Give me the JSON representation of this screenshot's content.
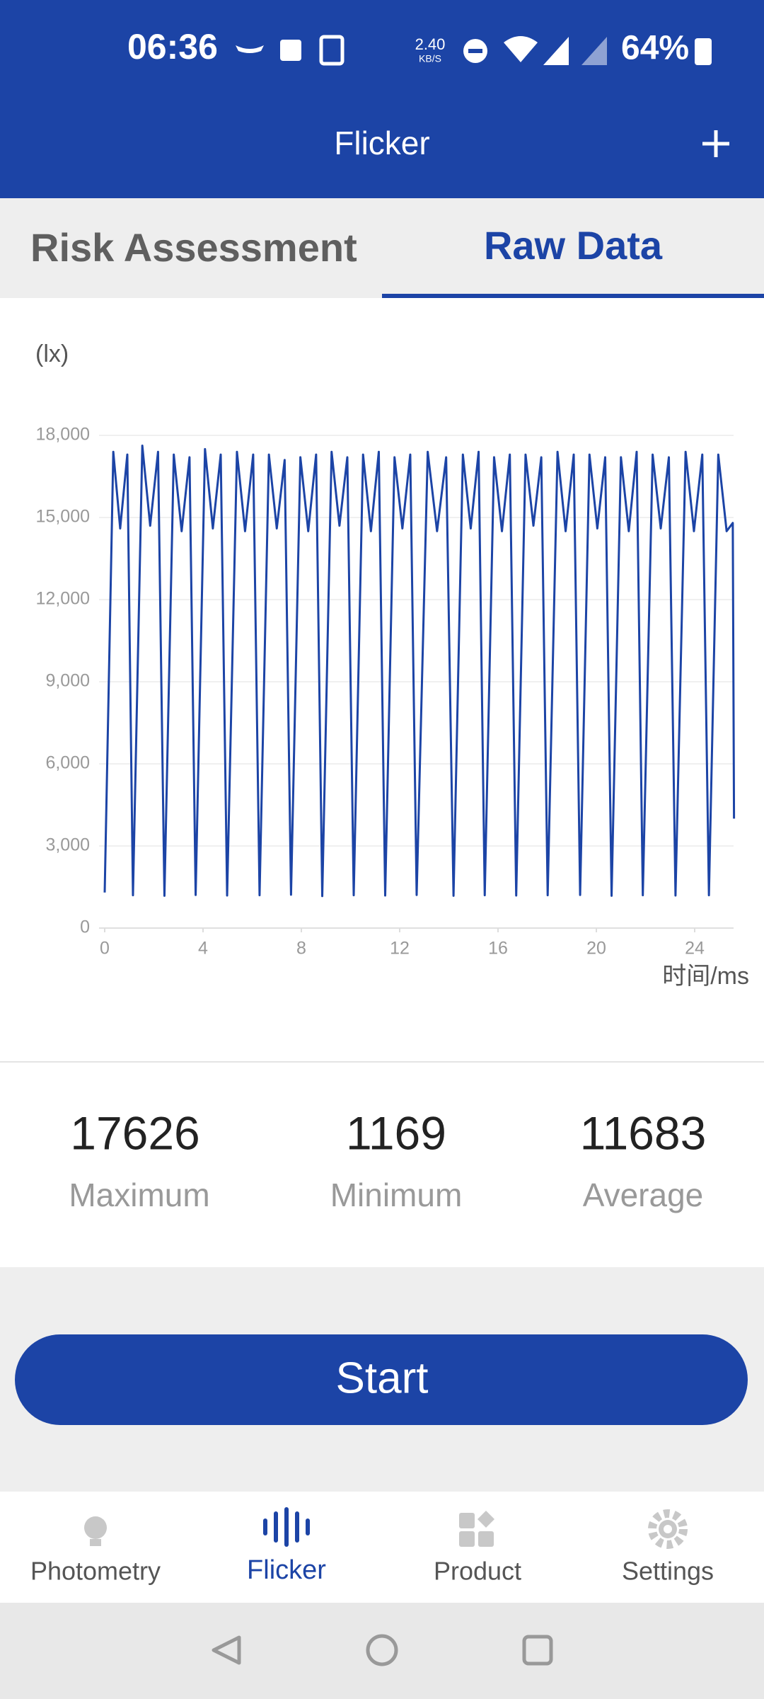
{
  "status_bar": {
    "time": "06:36",
    "net_speed": "2.40",
    "net_unit": "KB/S",
    "battery": "64%"
  },
  "app_bar": {
    "title": "Flicker"
  },
  "tabs": [
    "Risk Assessment",
    "Raw Data"
  ],
  "chart_data": {
    "type": "line",
    "y_unit": "(lx)",
    "x_label": "时间/ms",
    "color": "#1c44a6",
    "grid": true,
    "xlim": [
      0,
      25.6
    ],
    "ylim": [
      0,
      18000
    ],
    "xticks": [
      0,
      4,
      8,
      12,
      16,
      20,
      24
    ],
    "yticks": [
      0,
      {
        "value": 3000,
        "label": "3,000"
      },
      {
        "value": 6000,
        "label": "6,000"
      },
      {
        "value": 9000,
        "label": "9,000"
      },
      {
        "value": 12000,
        "label": "12,000"
      },
      {
        "value": 15000,
        "label": "15,000"
      },
      {
        "value": 18000,
        "label": "18,000"
      }
    ],
    "x": [
      0,
      0.35,
      0.63,
      0.92,
      1.15,
      1.53,
      1.85,
      2.17,
      2.43,
      2.81,
      3.13,
      3.45,
      3.7,
      4.08,
      4.4,
      4.72,
      4.98,
      5.38,
      5.71,
      6.04,
      6.3,
      6.68,
      7.0,
      7.32,
      7.58,
      7.96,
      8.28,
      8.6,
      8.85,
      9.23,
      9.55,
      9.87,
      10.13,
      10.51,
      10.83,
      11.15,
      11.41,
      11.79,
      12.11,
      12.43,
      12.69,
      13.14,
      13.52,
      13.89,
      14.19,
      14.57,
      14.89,
      15.21,
      15.46,
      15.84,
      16.16,
      16.48,
      16.74,
      17.12,
      17.44,
      17.76,
      18.02,
      18.42,
      18.75,
      19.08,
      19.34,
      19.72,
      20.04,
      20.36,
      20.62,
      21.0,
      21.32,
      21.64,
      21.89,
      22.29,
      22.62,
      22.95,
      23.22,
      23.63,
      23.97,
      24.31,
      24.58,
      24.96,
      25.3,
      25.55,
      25.6
    ],
    "values": [
      1300,
      17400,
      14600,
      17300,
      1200,
      17626,
      14700,
      17400,
      1180,
      17300,
      14500,
      17200,
      1210,
      17500,
      14600,
      17300,
      1190,
      17400,
      14500,
      17300,
      1200,
      17300,
      14600,
      17100,
      1220,
      17200,
      14500,
      17300,
      1169,
      17400,
      14700,
      17200,
      1200,
      17300,
      14500,
      17400,
      1190,
      17200,
      14600,
      17300,
      1210,
      17400,
      14500,
      17200,
      1180,
      17300,
      14600,
      17400,
      1200,
      17200,
      14500,
      17300,
      1190,
      17300,
      14700,
      17200,
      1200,
      17400,
      14500,
      17300,
      1210,
      17300,
      14600,
      17200,
      1180,
      17200,
      14500,
      17400,
      1200,
      17300,
      14600,
      17200,
      1190,
      17400,
      14500,
      17300,
      1200,
      17300,
      14500,
      14800,
      4000
    ]
  },
  "stats": [
    {
      "value": 17626,
      "label": "Maximum"
    },
    {
      "value": 1169,
      "label": "Minimum"
    },
    {
      "value": 11683,
      "label": "Average"
    }
  ],
  "button": "Start",
  "nav": [
    "Photometry",
    "Flicker",
    "Product",
    "Settings"
  ]
}
